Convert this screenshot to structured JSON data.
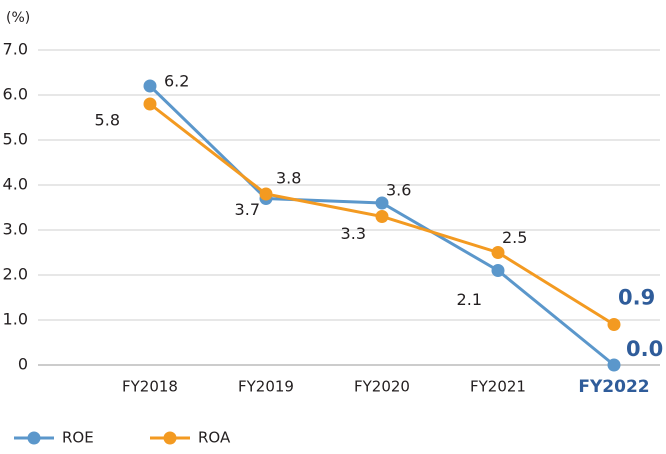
{
  "chart_data": {
    "type": "line",
    "y_label": "(%)",
    "categories": [
      "FY2018",
      "FY2019",
      "FY2020",
      "FY2021",
      "FY2022"
    ],
    "series": [
      {
        "name": "ROE",
        "color": "#5b97cb",
        "values": [
          6.2,
          3.7,
          3.6,
          2.1,
          0.0
        ],
        "value_labels": [
          "6.2",
          "3.7",
          "3.6",
          "2.1",
          "0.0"
        ]
      },
      {
        "name": "ROA",
        "color": "#f39a21",
        "values": [
          5.8,
          3.8,
          3.3,
          2.5,
          0.9
        ]
      }
    ],
    "ylim": [
      0,
      7
    ],
    "yticks": [
      0,
      {
        "value": 1,
        "label": "1.0"
      },
      {
        "value": 2,
        "label": "2.0"
      },
      {
        "value": 3,
        "label": "3.0"
      },
      {
        "value": 4,
        "label": "4.0"
      },
      {
        "value": 5,
        "label": "5.0"
      },
      {
        "value": 6,
        "label": "6.0"
      },
      {
        "value": 7,
        "label": "7.0"
      }
    ],
    "grid": true,
    "legend": "bottom-left"
  }
}
